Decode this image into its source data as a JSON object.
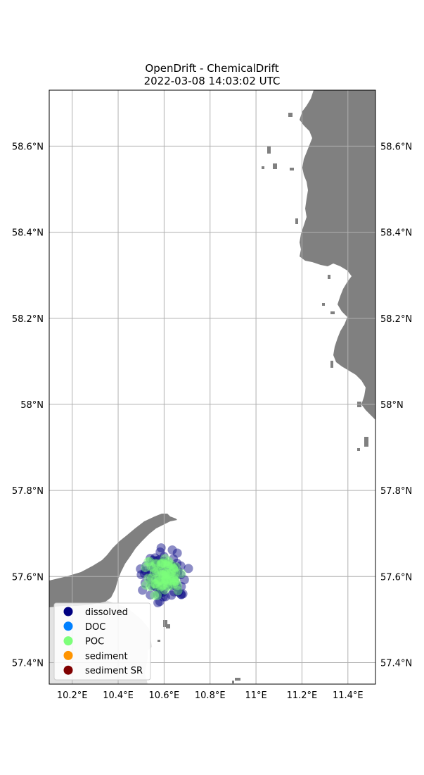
{
  "title_line1": "OpenDrift - ChemicalDrift",
  "title_line2": "2022-03-08 14:03:02 UTC",
  "map": {
    "lon_range": [
      10.1,
      11.52
    ],
    "lat_range": [
      57.35,
      58.73
    ],
    "lon_ticks": [
      {
        "value": 10.2,
        "label": "10.2°E"
      },
      {
        "value": 10.4,
        "label": "10.4°E"
      },
      {
        "value": 10.6,
        "label": "10.6°E"
      },
      {
        "value": 10.8,
        "label": "10.8°E"
      },
      {
        "value": 11.0,
        "label": "11°E"
      },
      {
        "value": 11.2,
        "label": "11.2°E"
      },
      {
        "value": 11.4,
        "label": "11.4°E"
      }
    ],
    "lat_ticks": [
      {
        "value": 57.4,
        "label": "57.4°N"
      },
      {
        "value": 57.6,
        "label": "57.6°N"
      },
      {
        "value": 57.8,
        "label": "57.8°N"
      },
      {
        "value": 58.0,
        "label": "58°N"
      },
      {
        "value": 58.2,
        "label": "58.2°N"
      },
      {
        "value": 58.4,
        "label": "58.4°N"
      },
      {
        "value": 58.6,
        "label": "58.6°N"
      }
    ],
    "grid": true,
    "land_color": "#808080",
    "ocean_color": "#ffffff",
    "shallow_color": "#e3e3e3",
    "grid_color": "#b0b0b0"
  },
  "legend": {
    "placement": "lower-left",
    "entries": [
      {
        "label": "dissolved",
        "color": "#000080"
      },
      {
        "label": "DOC",
        "color": "#0080ff"
      },
      {
        "label": "POC",
        "color": "#7dff7a"
      },
      {
        "label": "sediment",
        "color": "#ff9400"
      },
      {
        "label": "sediment SR",
        "color": "#800000"
      }
    ]
  },
  "particles": {
    "center_lon": 10.6,
    "center_lat": 57.602,
    "spread_lon": 0.11,
    "spread_lat": 0.065,
    "dissolved_count": 90,
    "poc_count": 70,
    "alpha": 0.45
  }
}
